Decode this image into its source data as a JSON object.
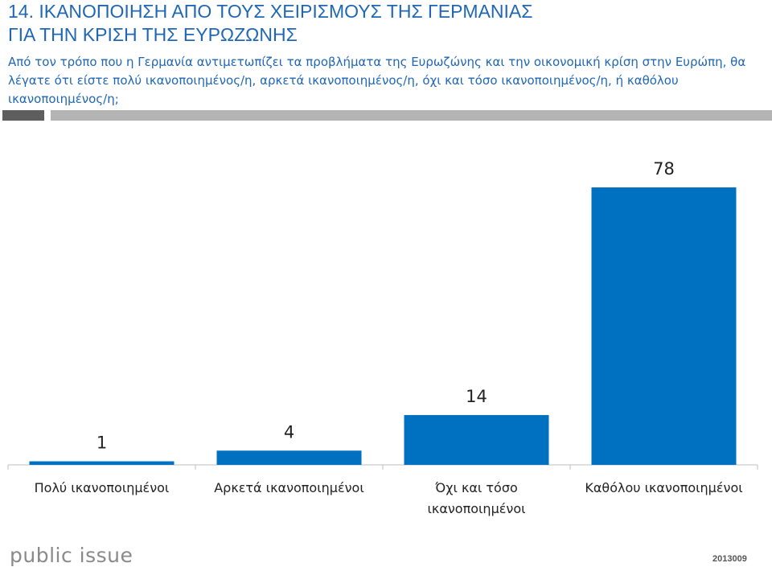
{
  "header": {
    "title_line1": "14. ΙΚΑΝΟΠΟΙΗΣΗ ΑΠΟ ΤΟΥΣ ΧΕΙΡΙΣΜΟΥΣ ΤΗΣ ΓΕΡΜΑΝΙΑΣ",
    "title_line2": "ΓΙΑ ΤΗΝ ΚΡΙΣΗ ΤΗΣ ΕΥΡΩΖΩΝΗΣ",
    "question": "Από τον τρόπο που η Γερμανία αντιμετωπίζει τα προβλήματα της Ευρωζώνης και την οικονομική κρίση στην Ευρώπη, θα λέγατε ότι είστε πολύ ικανοποιημένος/η, αρκετά ικανοποιημένος/η, όχι και τόσο ικανοποιημένος/η, ή καθόλου ικανοποιημένος/η;"
  },
  "footer": {
    "logo_text": "public issue",
    "code": "2013009"
  },
  "colors": {
    "accent": "#1f67b5",
    "bar": "#0070c0",
    "dark_strip": "#5e5e5e",
    "light_strip": "#b4b4b4"
  },
  "chart_data": {
    "type": "bar",
    "title": "",
    "xlabel": "",
    "ylabel": "",
    "ylim": [
      0,
      78
    ],
    "categories": [
      [
        "Πολύ ικανοποιημένοι"
      ],
      [
        "Αρκετά ικανοποιημένοι"
      ],
      [
        "Όχι και τόσο",
        "ικανοποιημένοι"
      ],
      [
        "Καθόλου ικανοποιημένοι"
      ]
    ],
    "values": [
      1,
      4,
      14,
      78
    ],
    "grid": false,
    "legend": "none"
  }
}
